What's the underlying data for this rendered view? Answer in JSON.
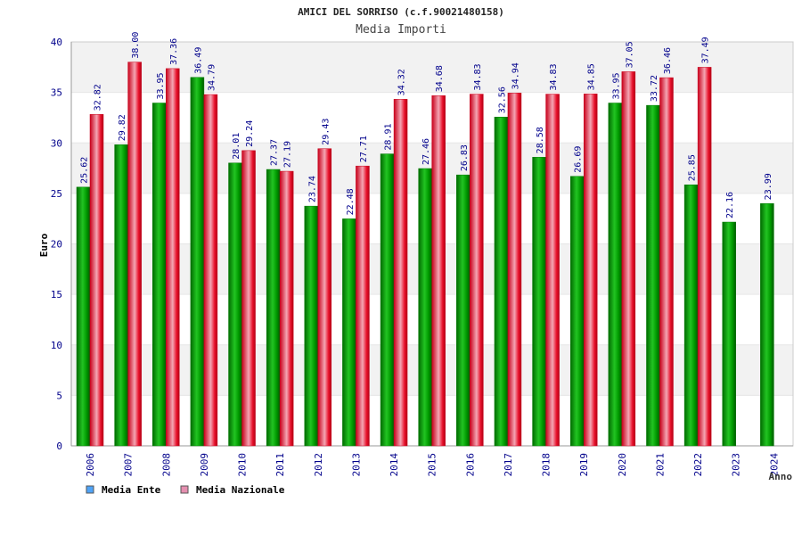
{
  "colors": {
    "ente": "#00a000",
    "nazionale": "#e8102a",
    "legend_ente": "#4fa3f7",
    "legend_nazionale": "#e58fb0",
    "band": "#f2f2f2",
    "text": "#00008b"
  },
  "chart_data": {
    "type": "bar",
    "title": "AMICI DEL SORRISO (c.f.90021480158)",
    "subtitle": "Media Importi",
    "xlabel": "Anno",
    "ylabel": "Euro",
    "ylim": [
      0,
      40
    ],
    "yticks": [
      0,
      5,
      10,
      15,
      20,
      25,
      30,
      35,
      40
    ],
    "grid": true,
    "legend_position": "bottom-left",
    "categories": [
      "2006",
      "2007",
      "2008",
      "2009",
      "2010",
      "2011",
      "2012",
      "2013",
      "2014",
      "2015",
      "2016",
      "2017",
      "2018",
      "2019",
      "2020",
      "2021",
      "2022",
      "2023",
      "2024"
    ],
    "series": [
      {
        "name": "Media Ente",
        "values": [
          25.62,
          29.82,
          33.95,
          36.49,
          28.01,
          27.37,
          23.74,
          22.48,
          28.91,
          27.46,
          26.83,
          32.56,
          28.58,
          26.69,
          33.95,
          33.72,
          25.85,
          22.16,
          23.99
        ],
        "labels": [
          "25.62",
          "29.82",
          "33.95",
          "36.49",
          "28.01",
          "27.37",
          "23.74",
          "22.48",
          "28.91",
          "27.46",
          "26.83",
          "32.56",
          "28.58",
          "26.69",
          "33.95",
          "33.72",
          "25.85",
          "22.16",
          "23.99"
        ]
      },
      {
        "name": "Media Nazionale",
        "values": [
          32.82,
          38.0,
          37.36,
          34.79,
          29.24,
          27.19,
          29.43,
          27.71,
          34.32,
          34.68,
          34.83,
          34.94,
          34.83,
          34.85,
          37.05,
          36.46,
          37.49,
          null,
          null
        ],
        "labels": [
          "32.82",
          "38.00",
          "37.36",
          "34.79",
          "29.24",
          "27.19",
          "29.43",
          "27.71",
          "34.32",
          "34.68",
          "34.83",
          "34.94",
          "34.83",
          "34.85",
          "37.05",
          "36.46",
          "37.49",
          "",
          ""
        ]
      }
    ]
  }
}
